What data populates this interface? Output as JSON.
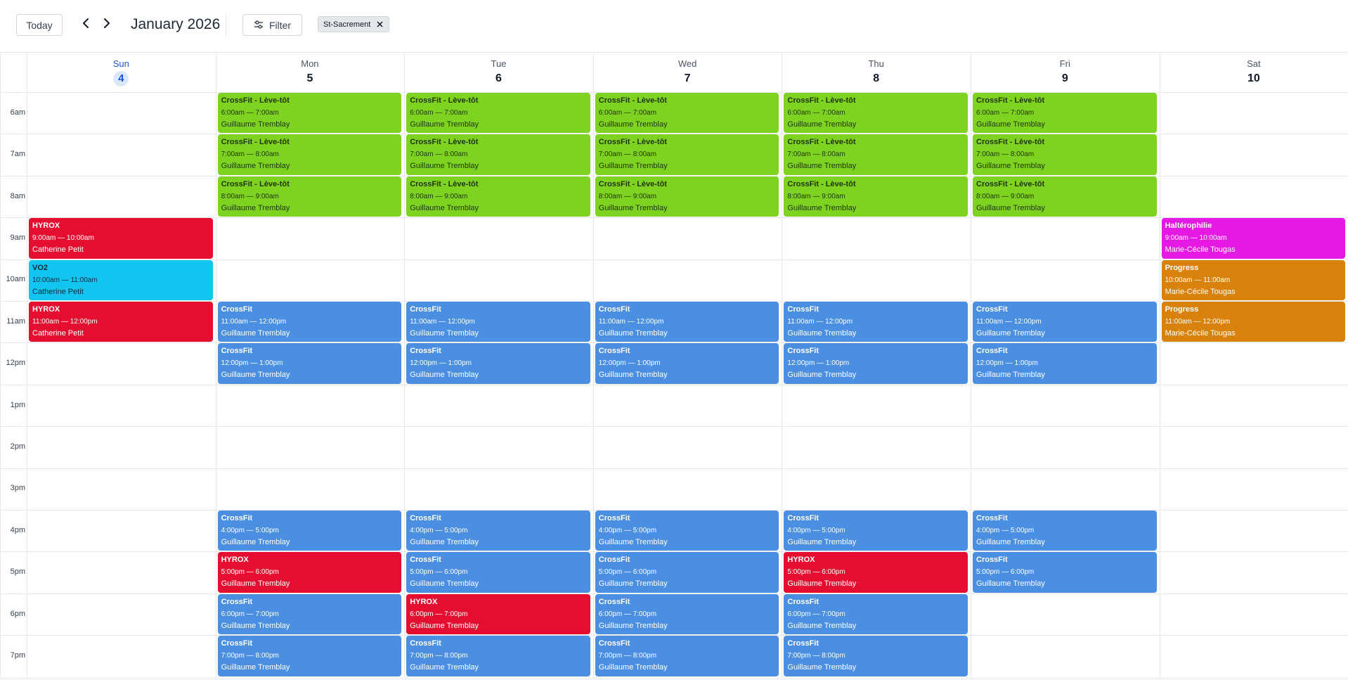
{
  "toolbar": {
    "today_label": "Today",
    "prev_icon": "chevron-left-icon",
    "next_icon": "chevron-right-icon",
    "month_title": "January 2026",
    "filter_label": "Filter",
    "filter_icon": "sliders-icon",
    "chip_label": "St-Sacrement",
    "chip_close_icon": "close-icon"
  },
  "days": [
    {
      "name": "Sun",
      "num": "4",
      "today": true
    },
    {
      "name": "Mon",
      "num": "5",
      "today": false
    },
    {
      "name": "Tue",
      "num": "6",
      "today": false
    },
    {
      "name": "Wed",
      "num": "7",
      "today": false
    },
    {
      "name": "Thu",
      "num": "8",
      "today": false
    },
    {
      "name": "Fri",
      "num": "9",
      "today": false
    },
    {
      "name": "Sat",
      "num": "10",
      "today": false
    }
  ],
  "hours": [
    "6am",
    "7am",
    "8am",
    "9am",
    "10am",
    "11am",
    "12pm",
    "1pm",
    "2pm",
    "3pm",
    "4pm",
    "5pm",
    "6pm",
    "7pm"
  ],
  "colors": {
    "green": "#7ed321",
    "blue": "#4a8fe2",
    "red": "#e60e30",
    "cyan": "#12c5f0",
    "magenta": "#e519e3",
    "orange": "#d9820b",
    "today_accent": "#1a56db"
  },
  "events": [
    {
      "day": 1,
      "start_hour": 6,
      "color": "green",
      "title": "CrossFit - Lève-tôt",
      "time": "6:00am — 7:00am",
      "coach": "Guillaume Tremblay"
    },
    {
      "day": 2,
      "start_hour": 6,
      "color": "green",
      "title": "CrossFit - Lève-tôt",
      "time": "6:00am — 7:00am",
      "coach": "Guillaume Tremblay"
    },
    {
      "day": 3,
      "start_hour": 6,
      "color": "green",
      "title": "CrossFit - Lève-tôt",
      "time": "6:00am — 7:00am",
      "coach": "Guillaume Tremblay"
    },
    {
      "day": 4,
      "start_hour": 6,
      "color": "green",
      "title": "CrossFit - Lève-tôt",
      "time": "6:00am — 7:00am",
      "coach": "Guillaume Tremblay"
    },
    {
      "day": 5,
      "start_hour": 6,
      "color": "green",
      "title": "CrossFit - Lève-tôt",
      "time": "6:00am — 7:00am",
      "coach": "Guillaume Tremblay"
    },
    {
      "day": 1,
      "start_hour": 7,
      "color": "green",
      "title": "CrossFit - Lève-tôt",
      "time": "7:00am — 8:00am",
      "coach": "Guillaume Tremblay"
    },
    {
      "day": 2,
      "start_hour": 7,
      "color": "green",
      "title": "CrossFit - Lève-tôt",
      "time": "7:00am — 8:00am",
      "coach": "Guillaume Tremblay"
    },
    {
      "day": 3,
      "start_hour": 7,
      "color": "green",
      "title": "CrossFit - Lève-tôt",
      "time": "7:00am — 8:00am",
      "coach": "Guillaume Tremblay"
    },
    {
      "day": 4,
      "start_hour": 7,
      "color": "green",
      "title": "CrossFit - Lève-tôt",
      "time": "7:00am — 8:00am",
      "coach": "Guillaume Tremblay"
    },
    {
      "day": 5,
      "start_hour": 7,
      "color": "green",
      "title": "CrossFit - Lève-tôt",
      "time": "7:00am — 8:00am",
      "coach": "Guillaume Tremblay"
    },
    {
      "day": 1,
      "start_hour": 8,
      "color": "green",
      "title": "CrossFit - Lève-tôt",
      "time": "8:00am — 9:00am",
      "coach": "Guillaume Tremblay"
    },
    {
      "day": 2,
      "start_hour": 8,
      "color": "green",
      "title": "CrossFit - Lève-tôt",
      "time": "8:00am — 9:00am",
      "coach": "Guillaume Tremblay"
    },
    {
      "day": 3,
      "start_hour": 8,
      "color": "green",
      "title": "CrossFit - Lève-tôt",
      "time": "8:00am — 9:00am",
      "coach": "Guillaume Tremblay"
    },
    {
      "day": 4,
      "start_hour": 8,
      "color": "green",
      "title": "CrossFit - Lève-tôt",
      "time": "8:00am — 9:00am",
      "coach": "Guillaume Tremblay"
    },
    {
      "day": 5,
      "start_hour": 8,
      "color": "green",
      "title": "CrossFit - Lève-tôt",
      "time": "8:00am — 9:00am",
      "coach": "Guillaume Tremblay"
    },
    {
      "day": 0,
      "start_hour": 9,
      "color": "red",
      "title": "HYROX",
      "time": "9:00am — 10:00am",
      "coach": "Catherine Petit"
    },
    {
      "day": 6,
      "start_hour": 9,
      "color": "magenta",
      "title": "Haltérophilie",
      "time": "9:00am — 10:00am",
      "coach": "Marie-Cécile Tougas"
    },
    {
      "day": 0,
      "start_hour": 10,
      "color": "cyan",
      "title": "VO2",
      "time": "10:00am — 11:00am",
      "coach": "Catherine Petit"
    },
    {
      "day": 6,
      "start_hour": 10,
      "color": "orange",
      "title": "Progress",
      "time": "10:00am — 11:00am",
      "coach": "Marie-Cécile Tougas"
    },
    {
      "day": 0,
      "start_hour": 11,
      "color": "red",
      "title": "HYROX",
      "time": "11:00am — 12:00pm",
      "coach": "Catherine Petit"
    },
    {
      "day": 1,
      "start_hour": 11,
      "color": "blue",
      "title": "CrossFit",
      "time": "11:00am — 12:00pm",
      "coach": "Guillaume Tremblay"
    },
    {
      "day": 2,
      "start_hour": 11,
      "color": "blue",
      "title": "CrossFit",
      "time": "11:00am — 12:00pm",
      "coach": "Guillaume Tremblay"
    },
    {
      "day": 3,
      "start_hour": 11,
      "color": "blue",
      "title": "CrossFit",
      "time": "11:00am — 12:00pm",
      "coach": "Guillaume Tremblay"
    },
    {
      "day": 4,
      "start_hour": 11,
      "color": "blue",
      "title": "CrossFit",
      "time": "11:00am — 12:00pm",
      "coach": "Guillaume Tremblay"
    },
    {
      "day": 5,
      "start_hour": 11,
      "color": "blue",
      "title": "CrossFit",
      "time": "11:00am — 12:00pm",
      "coach": "Guillaume Tremblay"
    },
    {
      "day": 6,
      "start_hour": 11,
      "color": "orange",
      "title": "Progress",
      "time": "11:00am — 12:00pm",
      "coach": "Marie-Cécile Tougas"
    },
    {
      "day": 1,
      "start_hour": 12,
      "color": "blue",
      "title": "CrossFit",
      "time": "12:00pm — 1:00pm",
      "coach": "Guillaume Tremblay"
    },
    {
      "day": 2,
      "start_hour": 12,
      "color": "blue",
      "title": "CrossFit",
      "time": "12:00pm — 1:00pm",
      "coach": "Guillaume Tremblay"
    },
    {
      "day": 3,
      "start_hour": 12,
      "color": "blue",
      "title": "CrossFit",
      "time": "12:00pm — 1:00pm",
      "coach": "Guillaume Tremblay"
    },
    {
      "day": 4,
      "start_hour": 12,
      "color": "blue",
      "title": "CrossFit",
      "time": "12:00pm — 1:00pm",
      "coach": "Guillaume Tremblay"
    },
    {
      "day": 5,
      "start_hour": 12,
      "color": "blue",
      "title": "CrossFit",
      "time": "12:00pm — 1:00pm",
      "coach": "Guillaume Tremblay"
    },
    {
      "day": 1,
      "start_hour": 16,
      "color": "blue",
      "title": "CrossFit",
      "time": "4:00pm — 5:00pm",
      "coach": "Guillaume Tremblay"
    },
    {
      "day": 2,
      "start_hour": 16,
      "color": "blue",
      "title": "CrossFit",
      "time": "4:00pm — 5:00pm",
      "coach": "Guillaume Tremblay"
    },
    {
      "day": 3,
      "start_hour": 16,
      "color": "blue",
      "title": "CrossFit",
      "time": "4:00pm — 5:00pm",
      "coach": "Guillaume Tremblay"
    },
    {
      "day": 4,
      "start_hour": 16,
      "color": "blue",
      "title": "CrossFit",
      "time": "4:00pm — 5:00pm",
      "coach": "Guillaume Tremblay"
    },
    {
      "day": 5,
      "start_hour": 16,
      "color": "blue",
      "title": "CrossFit",
      "time": "4:00pm — 5:00pm",
      "coach": "Guillaume Tremblay"
    },
    {
      "day": 1,
      "start_hour": 17,
      "color": "red",
      "title": "HYROX",
      "time": "5:00pm — 6:00pm",
      "coach": "Guillaume Tremblay"
    },
    {
      "day": 2,
      "start_hour": 17,
      "color": "blue",
      "title": "CrossFit",
      "time": "5:00pm — 6:00pm",
      "coach": "Guillaume Tremblay"
    },
    {
      "day": 3,
      "start_hour": 17,
      "color": "blue",
      "title": "CrossFit",
      "time": "5:00pm — 6:00pm",
      "coach": "Guillaume Tremblay"
    },
    {
      "day": 4,
      "start_hour": 17,
      "color": "red",
      "title": "HYROX",
      "time": "5:00pm — 6:00pm",
      "coach": "Guillaume Tremblay"
    },
    {
      "day": 5,
      "start_hour": 17,
      "color": "blue",
      "title": "CrossFit",
      "time": "5:00pm — 6:00pm",
      "coach": "Guillaume Tremblay"
    },
    {
      "day": 1,
      "start_hour": 18,
      "color": "blue",
      "title": "CrossFit",
      "time": "6:00pm — 7:00pm",
      "coach": "Guillaume Tremblay"
    },
    {
      "day": 2,
      "start_hour": 18,
      "color": "red",
      "title": "HYROX",
      "time": "6:00pm — 7:00pm",
      "coach": "Guillaume Tremblay"
    },
    {
      "day": 3,
      "start_hour": 18,
      "color": "blue",
      "title": "CrossFit",
      "time": "6:00pm — 7:00pm",
      "coach": "Guillaume Tremblay"
    },
    {
      "day": 4,
      "start_hour": 18,
      "color": "blue",
      "title": "CrossFit",
      "time": "6:00pm — 7:00pm",
      "coach": "Guillaume Tremblay"
    },
    {
      "day": 1,
      "start_hour": 19,
      "color": "blue",
      "title": "CrossFit",
      "time": "7:00pm — 8:00pm",
      "coach": "Guillaume Tremblay"
    },
    {
      "day": 2,
      "start_hour": 19,
      "color": "blue",
      "title": "CrossFit",
      "time": "7:00pm — 8:00pm",
      "coach": "Guillaume Tremblay"
    },
    {
      "day": 3,
      "start_hour": 19,
      "color": "blue",
      "title": "CrossFit",
      "time": "7:00pm — 8:00pm",
      "coach": "Guillaume Tremblay"
    },
    {
      "day": 4,
      "start_hour": 19,
      "color": "blue",
      "title": "CrossFit",
      "time": "7:00pm — 8:00pm",
      "coach": "Guillaume Tremblay"
    }
  ]
}
